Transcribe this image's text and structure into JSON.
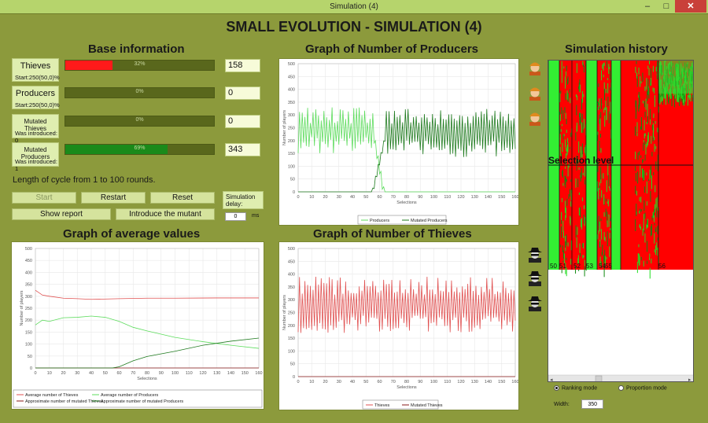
{
  "window": {
    "title": "Simulation (4)",
    "minimize": "–",
    "maximize": "□",
    "close": "✕"
  },
  "heading": "SMALL EVOLUTION - SIMULATION (4)",
  "sections": {
    "base": "Base information",
    "producers_graph": "Graph of Number of Producers",
    "history": "Simulation history",
    "avg_graph": "Graph of average values",
    "thieves_graph": "Graph of Number of Thieves"
  },
  "base_rows": [
    {
      "name": "Thieves",
      "sub": "Start:250(50,0)%",
      "pct": 0.32,
      "pct_label": "32%",
      "bar_color": "#ff1a1a",
      "value": "158"
    },
    {
      "name": "Producers",
      "sub": "Start:250(50,0)%",
      "pct": 0,
      "pct_label": "0%",
      "bar_color": "#1a9a1a",
      "value": "0"
    },
    {
      "name": "Mutated Thieves",
      "sub": "Was introduced: 0",
      "pct": 0,
      "pct_label": "0%",
      "bar_color": "#1a9a1a",
      "value": "0"
    },
    {
      "name": "Mutated Producers",
      "sub": "Was introduced: 1",
      "pct": 0.69,
      "pct_label": "69%",
      "bar_color": "#1a8a1a",
      "value": "343"
    }
  ],
  "cycle_text": "Length of cycle from 1 to 100 rounds.",
  "buttons": {
    "start": "Start",
    "restart": "Restart",
    "reset": "Reset",
    "show_report": "Show report",
    "introduce": "Introduce the mutant"
  },
  "delay": {
    "label": "Simulation delay:",
    "value": "0",
    "unit": "ms"
  },
  "history": {
    "selection_level": "Selection level",
    "marks": [
      "50",
      "51",
      "52",
      "53",
      "54",
      "55",
      "56"
    ]
  },
  "modes": {
    "ranking": "Ranking mode",
    "proportion": "Proportion mode",
    "width_label": "Width:",
    "width_value": "350"
  },
  "icons": {
    "producer": "producer-avatar-icon",
    "thief": "thief-avatar-icon"
  },
  "chart_data": [
    {
      "type": "line",
      "id": "producers",
      "title": "",
      "xlabel": "Selections",
      "ylabel": "Number of players",
      "ylim": [
        0,
        500
      ],
      "xlim": [
        0,
        160
      ],
      "xticks": [
        0,
        10,
        20,
        30,
        40,
        50,
        60,
        70,
        80,
        90,
        100,
        110,
        120,
        130,
        140,
        150,
        160
      ],
      "yticks": [
        0,
        50,
        100,
        150,
        200,
        250,
        300,
        350,
        400,
        450,
        500
      ],
      "series": [
        {
          "name": "Producers",
          "color": "#5ddc5d",
          "pattern": "osc_decay",
          "base": 240,
          "amp": 90,
          "until": 63
        },
        {
          "name": "Mutated Producers",
          "color": "#1e7a1e",
          "pattern": "rise_osc",
          "base": 230,
          "amp": 95,
          "from": 55
        }
      ]
    },
    {
      "type": "line",
      "id": "thieves",
      "title": "",
      "xlabel": "Selections",
      "ylabel": "Number of players",
      "ylim": [
        0,
        500
      ],
      "xlim": [
        0,
        160
      ],
      "xticks": [
        0,
        10,
        20,
        30,
        40,
        50,
        60,
        70,
        80,
        90,
        100,
        110,
        120,
        130,
        140,
        150,
        160
      ],
      "yticks": [
        0,
        50,
        100,
        150,
        200,
        250,
        300,
        350,
        400,
        450,
        500
      ],
      "series": [
        {
          "name": "Thieves",
          "color": "#e05050",
          "pattern": "osc",
          "base": 280,
          "amp": 110
        },
        {
          "name": "Mutated Thieves",
          "color": "#8a1a1a",
          "pattern": "flat",
          "value": 0
        }
      ]
    },
    {
      "type": "line",
      "id": "averages",
      "title": "",
      "xlabel": "Selections",
      "ylabel": "Number of players",
      "ylim": [
        0,
        500
      ],
      "xlim": [
        0,
        160
      ],
      "xticks": [
        0,
        10,
        20,
        30,
        40,
        50,
        60,
        70,
        80,
        90,
        100,
        110,
        120,
        130,
        140,
        150,
        160
      ],
      "yticks": [
        0,
        50,
        100,
        150,
        200,
        250,
        300,
        350,
        400,
        450,
        500
      ],
      "series": [
        {
          "name": "Average number of Thieves",
          "color": "#e05050",
          "points": [
            [
              0,
              325
            ],
            [
              5,
              305
            ],
            [
              10,
              300
            ],
            [
              20,
              292
            ],
            [
              30,
              290
            ],
            [
              40,
              287
            ],
            [
              60,
              290
            ],
            [
              80,
              292
            ],
            [
              100,
              292
            ],
            [
              130,
              293
            ],
            [
              160,
              293
            ]
          ]
        },
        {
          "name": "Average number of Producers",
          "color": "#5ddc5d",
          "points": [
            [
              0,
              180
            ],
            [
              5,
              200
            ],
            [
              10,
              195
            ],
            [
              20,
              210
            ],
            [
              30,
              212
            ],
            [
              40,
              217
            ],
            [
              50,
              212
            ],
            [
              60,
              195
            ],
            [
              70,
              170
            ],
            [
              80,
              155
            ],
            [
              100,
              128
            ],
            [
              120,
              110
            ],
            [
              140,
              95
            ],
            [
              160,
              82
            ]
          ]
        },
        {
          "name": "Approximate number of mutated Thieves",
          "color": "#8a1a1a",
          "points": [
            [
              0,
              0
            ],
            [
              160,
              0
            ]
          ]
        },
        {
          "name": "Approximate number of mutated Producers",
          "color": "#1e7a1e",
          "points": [
            [
              0,
              0
            ],
            [
              55,
              0
            ],
            [
              60,
              5
            ],
            [
              70,
              30
            ],
            [
              80,
              48
            ],
            [
              100,
              70
            ],
            [
              120,
              95
            ],
            [
              140,
              112
            ],
            [
              160,
              125
            ]
          ]
        }
      ]
    }
  ]
}
